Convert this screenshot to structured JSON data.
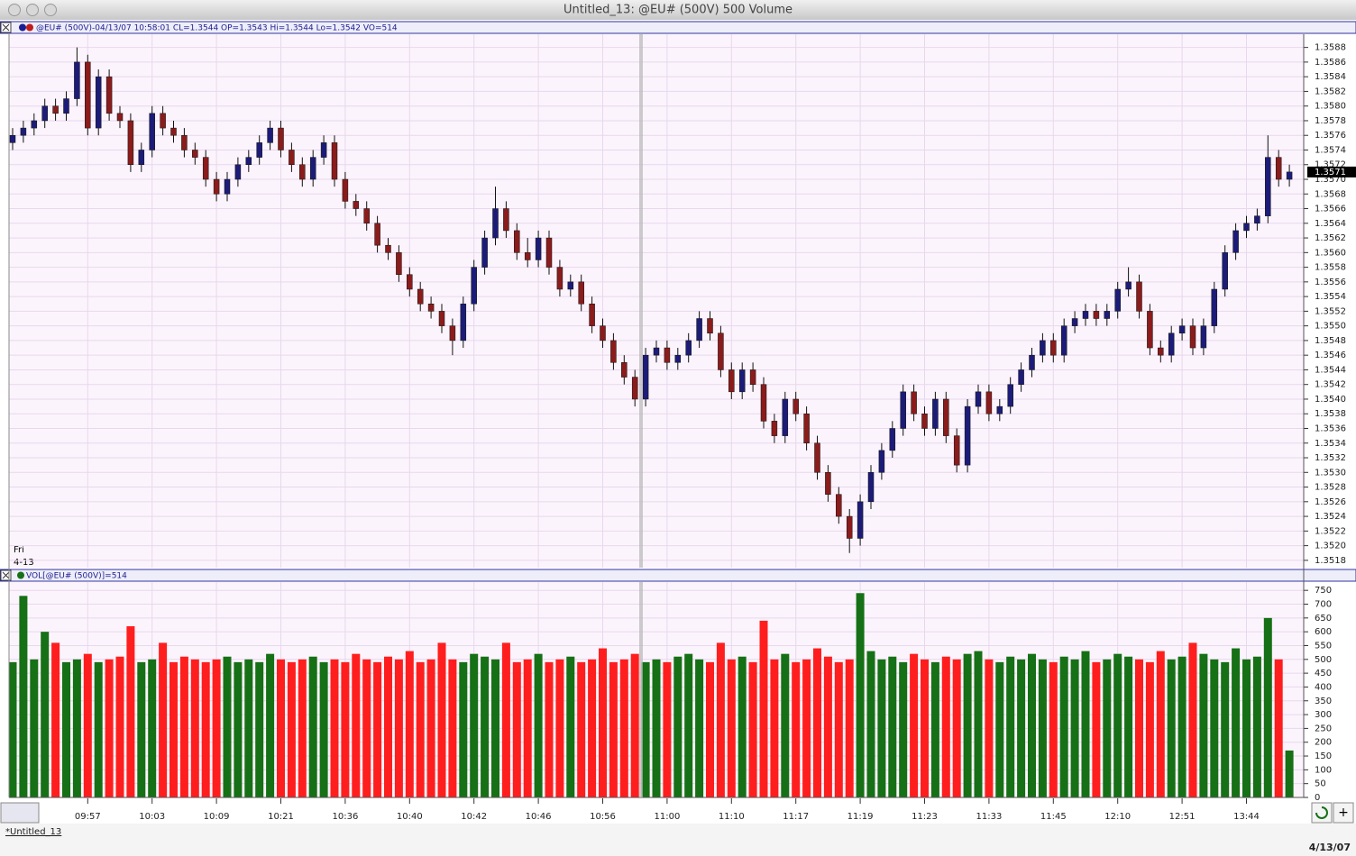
{
  "window": {
    "title": "Untitled_13: @EU# (500V) 500 Volume",
    "tab": "*Untitled_13",
    "date": "4/13/07"
  },
  "chart_data": [
    {
      "type": "candlestick",
      "header": "@EU# (500V)-04/13/07 10:58:01 CL=1.3544 OP=1.3543 Hi=1.3544 Lo=1.3542 VO=514",
      "day_label": "Fri",
      "date_label": "4-13",
      "last_price": 1.3571,
      "up_color": "#1c1c78",
      "down_color": "#8a1c1c",
      "ylim": [
        1.3517,
        1.35898
      ],
      "yticks": [
        1.3518,
        {
          "value": 1.352,
          "label": "1.3520"
        },
        1.3522,
        1.3524,
        1.3526,
        1.3528,
        {
          "value": 1.353,
          "label": "1.3530"
        },
        1.3532,
        1.3534,
        1.3536,
        1.3538,
        {
          "value": 1.354,
          "label": "1.3540"
        },
        1.3542,
        1.3544,
        1.3546,
        1.3548,
        {
          "value": 1.355,
          "label": "1.3550"
        },
        1.3552,
        1.3554,
        1.3556,
        1.3558,
        {
          "value": 1.356,
          "label": "1.3560"
        },
        1.3562,
        1.3564,
        1.3566,
        1.3568,
        {
          "value": 1.357,
          "label": "1.3570"
        },
        1.3572,
        1.3574,
        1.3576,
        1.3578,
        {
          "value": 1.358,
          "label": "1.3580"
        },
        1.3582,
        1.3584,
        1.3586,
        1.3588
      ],
      "open": [
        1.3575,
        1.3576,
        1.3577,
        1.3578,
        1.358,
        1.3579,
        1.3581,
        1.3586,
        1.3577,
        1.3584,
        1.3579,
        1.3578,
        1.3572,
        1.3574,
        1.3579,
        1.3577,
        1.3576,
        1.3574,
        1.3573,
        1.357,
        1.3568,
        1.357,
        1.3572,
        1.3573,
        1.3575,
        1.3577,
        1.3574,
        1.3572,
        1.357,
        1.3573,
        1.3575,
        1.357,
        1.3567,
        1.3566,
        1.3564,
        1.3561,
        1.356,
        1.3557,
        1.3555,
        1.3553,
        1.3552,
        1.355,
        1.3548,
        1.3553,
        1.3558,
        1.3562,
        1.3566,
        1.3563,
        1.356,
        1.3559,
        1.3562,
        1.3558,
        1.3555,
        1.3556,
        1.3553,
        1.355,
        1.3548,
        1.3545,
        1.3543,
        1.354,
        1.3546,
        1.3547,
        1.3545,
        1.3546,
        1.3548,
        1.3551,
        1.3549,
        1.3544,
        1.3541,
        1.3544,
        1.3542,
        1.3537,
        1.3535,
        1.354,
        1.3538,
        1.3534,
        1.353,
        1.3527,
        1.3524,
        1.3521,
        1.3526,
        1.353,
        1.3533,
        1.3536,
        1.3541,
        1.3538,
        1.3536,
        1.354,
        1.3535,
        1.3531,
        1.3539,
        1.3541,
        1.3538,
        1.3539,
        1.3542,
        1.3544,
        1.3546,
        1.3548,
        1.3546,
        1.355,
        1.3551,
        1.3552,
        1.3551,
        1.3552,
        1.3555,
        1.3556,
        1.3552,
        1.3547,
        1.3546,
        1.3549,
        1.355,
        1.3547,
        1.355,
        1.3555,
        1.356,
        1.3563,
        1.3564,
        1.3565,
        1.3573,
        1.357
      ],
      "high": [
        1.3577,
        1.3578,
        1.3579,
        1.3581,
        1.3581,
        1.3582,
        1.3588,
        1.3587,
        1.3585,
        1.3585,
        1.358,
        1.3579,
        1.3575,
        1.358,
        1.358,
        1.3578,
        1.3577,
        1.3575,
        1.3574,
        1.3571,
        1.3571,
        1.3573,
        1.3574,
        1.3576,
        1.3578,
        1.3578,
        1.3575,
        1.3573,
        1.3574,
        1.3576,
        1.3576,
        1.3571,
        1.3568,
        1.3567,
        1.3565,
        1.3562,
        1.3561,
        1.3558,
        1.3556,
        1.3554,
        1.3553,
        1.3551,
        1.3554,
        1.3559,
        1.3563,
        1.3569,
        1.3567,
        1.3564,
        1.3562,
        1.3563,
        1.3563,
        1.3559,
        1.3557,
        1.3557,
        1.3554,
        1.3551,
        1.3549,
        1.3546,
        1.3544,
        1.3547,
        1.3548,
        1.3548,
        1.3547,
        1.3549,
        1.3552,
        1.3552,
        1.355,
        1.3545,
        1.3545,
        1.3545,
        1.3543,
        1.3538,
        1.3541,
        1.3541,
        1.3539,
        1.3535,
        1.3531,
        1.3528,
        1.3525,
        1.3527,
        1.3531,
        1.3534,
        1.3537,
        1.3542,
        1.3542,
        1.3539,
        1.3541,
        1.3541,
        1.3536,
        1.354,
        1.3542,
        1.3542,
        1.354,
        1.3543,
        1.3545,
        1.3547,
        1.3549,
        1.3549,
        1.3551,
        1.3552,
        1.3553,
        1.3553,
        1.3553,
        1.3556,
        1.3558,
        1.3557,
        1.3553,
        1.3548,
        1.355,
        1.3551,
        1.3551,
        1.3551,
        1.3556,
        1.3561,
        1.3564,
        1.3565,
        1.3566,
        1.3576,
        1.3574,
        1.3572
      ],
      "low": [
        1.3574,
        1.3575,
        1.3576,
        1.3577,
        1.3578,
        1.3578,
        1.358,
        1.3576,
        1.3576,
        1.3578,
        1.3577,
        1.3571,
        1.3571,
        1.3573,
        1.3576,
        1.3575,
        1.3573,
        1.3572,
        1.3569,
        1.3567,
        1.3567,
        1.3569,
        1.3571,
        1.3572,
        1.3574,
        1.3573,
        1.3571,
        1.3569,
        1.3569,
        1.3572,
        1.3569,
        1.3566,
        1.3565,
        1.3563,
        1.356,
        1.3559,
        1.3556,
        1.3554,
        1.3552,
        1.3551,
        1.3549,
        1.3546,
        1.3547,
        1.3552,
        1.3557,
        1.3561,
        1.3562,
        1.3559,
        1.3558,
        1.3558,
        1.3557,
        1.3554,
        1.3554,
        1.3552,
        1.3549,
        1.3547,
        1.3544,
        1.3542,
        1.3539,
        1.3539,
        1.3545,
        1.3544,
        1.3544,
        1.3545,
        1.3547,
        1.3548,
        1.3543,
        1.354,
        1.354,
        1.3541,
        1.3536,
        1.3534,
        1.3534,
        1.3537,
        1.3533,
        1.3529,
        1.3526,
        1.3523,
        1.3519,
        1.352,
        1.3525,
        1.3529,
        1.3532,
        1.3535,
        1.3537,
        1.3535,
        1.3535,
        1.3534,
        1.353,
        1.353,
        1.3538,
        1.3537,
        1.3537,
        1.3538,
        1.3541,
        1.3543,
        1.3545,
        1.3545,
        1.3545,
        1.3549,
        1.355,
        1.355,
        1.355,
        1.3551,
        1.3554,
        1.3551,
        1.3546,
        1.3545,
        1.3545,
        1.3548,
        1.3546,
        1.3546,
        1.3549,
        1.3554,
        1.3559,
        1.3562,
        1.3563,
        1.3564,
        1.3569,
        1.3569
      ],
      "close": [
        1.3576,
        1.3577,
        1.3578,
        1.358,
        1.3579,
        1.3581,
        1.3586,
        1.3577,
        1.3584,
        1.3579,
        1.3578,
        1.3572,
        1.3574,
        1.3579,
        1.3577,
        1.3576,
        1.3574,
        1.3573,
        1.357,
        1.3568,
        1.357,
        1.3572,
        1.3573,
        1.3575,
        1.3577,
        1.3574,
        1.3572,
        1.357,
        1.3573,
        1.3575,
        1.357,
        1.3567,
        1.3566,
        1.3564,
        1.3561,
        1.356,
        1.3557,
        1.3555,
        1.3553,
        1.3552,
        1.355,
        1.3548,
        1.3553,
        1.3558,
        1.3562,
        1.3566,
        1.3563,
        1.356,
        1.3559,
        1.3562,
        1.3558,
        1.3555,
        1.3556,
        1.3553,
        1.355,
        1.3548,
        1.3545,
        1.3543,
        1.354,
        1.3546,
        1.3547,
        1.3545,
        1.3546,
        1.3548,
        1.3551,
        1.3549,
        1.3544,
        1.3541,
        1.3544,
        1.3542,
        1.3537,
        1.3535,
        1.354,
        1.3538,
        1.3534,
        1.353,
        1.3527,
        1.3524,
        1.3521,
        1.3526,
        1.353,
        1.3533,
        1.3536,
        1.3541,
        1.3538,
        1.3536,
        1.354,
        1.3535,
        1.3531,
        1.3539,
        1.3541,
        1.3538,
        1.3539,
        1.3542,
        1.3544,
        1.3546,
        1.3548,
        1.3546,
        1.355,
        1.3551,
        1.3552,
        1.3551,
        1.3552,
        1.3555,
        1.3556,
        1.3552,
        1.3547,
        1.3546,
        1.3549,
        1.355,
        1.3547,
        1.355,
        1.3555,
        1.356,
        1.3563,
        1.3564,
        1.3565,
        1.3573,
        1.357,
        1.3571
      ]
    },
    {
      "type": "bar",
      "header": "VOL[@EU# (500V)]=514",
      "up_color": "#167016",
      "down_color": "#ff1e1e",
      "ylim": [
        0,
        780
      ],
      "yticks": [
        0,
        50,
        100,
        150,
        200,
        250,
        300,
        350,
        400,
        450,
        500,
        550,
        600,
        650,
        700,
        750
      ],
      "categories": [
        null,
        null,
        null,
        null,
        null,
        null,
        null,
        "09:57",
        null,
        null,
        null,
        null,
        null,
        "10:03",
        null,
        null,
        null,
        null,
        null,
        "10:09",
        null,
        null,
        null,
        null,
        null,
        "10:21",
        null,
        null,
        null,
        null,
        null,
        "10:36",
        null,
        null,
        null,
        null,
        null,
        "10:40",
        null,
        null,
        null,
        null,
        null,
        "10:42",
        null,
        null,
        null,
        null,
        null,
        "10:46",
        null,
        null,
        null,
        null,
        null,
        "10:56",
        null,
        null,
        null,
        null,
        null,
        "11:00",
        null,
        null,
        null,
        null,
        null,
        "11:10",
        null,
        null,
        null,
        null,
        null,
        "11:17",
        null,
        null,
        null,
        null,
        null,
        "11:19",
        null,
        null,
        null,
        null,
        null,
        "11:23",
        null,
        null,
        null,
        null,
        null,
        "11:33",
        null,
        null,
        null,
        null,
        null,
        "11:45",
        null,
        null,
        null,
        null,
        null,
        "12:10",
        null,
        null,
        null,
        null,
        null,
        "12:51",
        null,
        null,
        null,
        null,
        null,
        "13:44",
        null,
        null,
        null,
        null
      ],
      "values": [
        490,
        730,
        500,
        600,
        560,
        490,
        500,
        520,
        490,
        500,
        510,
        620,
        490,
        500,
        560,
        490,
        510,
        500,
        490,
        500,
        510,
        490,
        500,
        490,
        520,
        500,
        490,
        500,
        510,
        490,
        500,
        490,
        520,
        500,
        490,
        510,
        500,
        530,
        490,
        500,
        560,
        500,
        490,
        520,
        510,
        500,
        560,
        490,
        500,
        520,
        490,
        500,
        510,
        490,
        500,
        540,
        490,
        500,
        520,
        490,
        500,
        490,
        510,
        520,
        500,
        490,
        560,
        500,
        510,
        490,
        640,
        500,
        520,
        490,
        500,
        540,
        510,
        490,
        500,
        740,
        530,
        500,
        510,
        490,
        520,
        500,
        490,
        510,
        500,
        520,
        530,
        500,
        490,
        510,
        500,
        520,
        500,
        490,
        510,
        500,
        530,
        490,
        500,
        520,
        510,
        500,
        490,
        530,
        500,
        510,
        560,
        520,
        500,
        490,
        540,
        500,
        510,
        650,
        500,
        170
      ]
    }
  ]
}
